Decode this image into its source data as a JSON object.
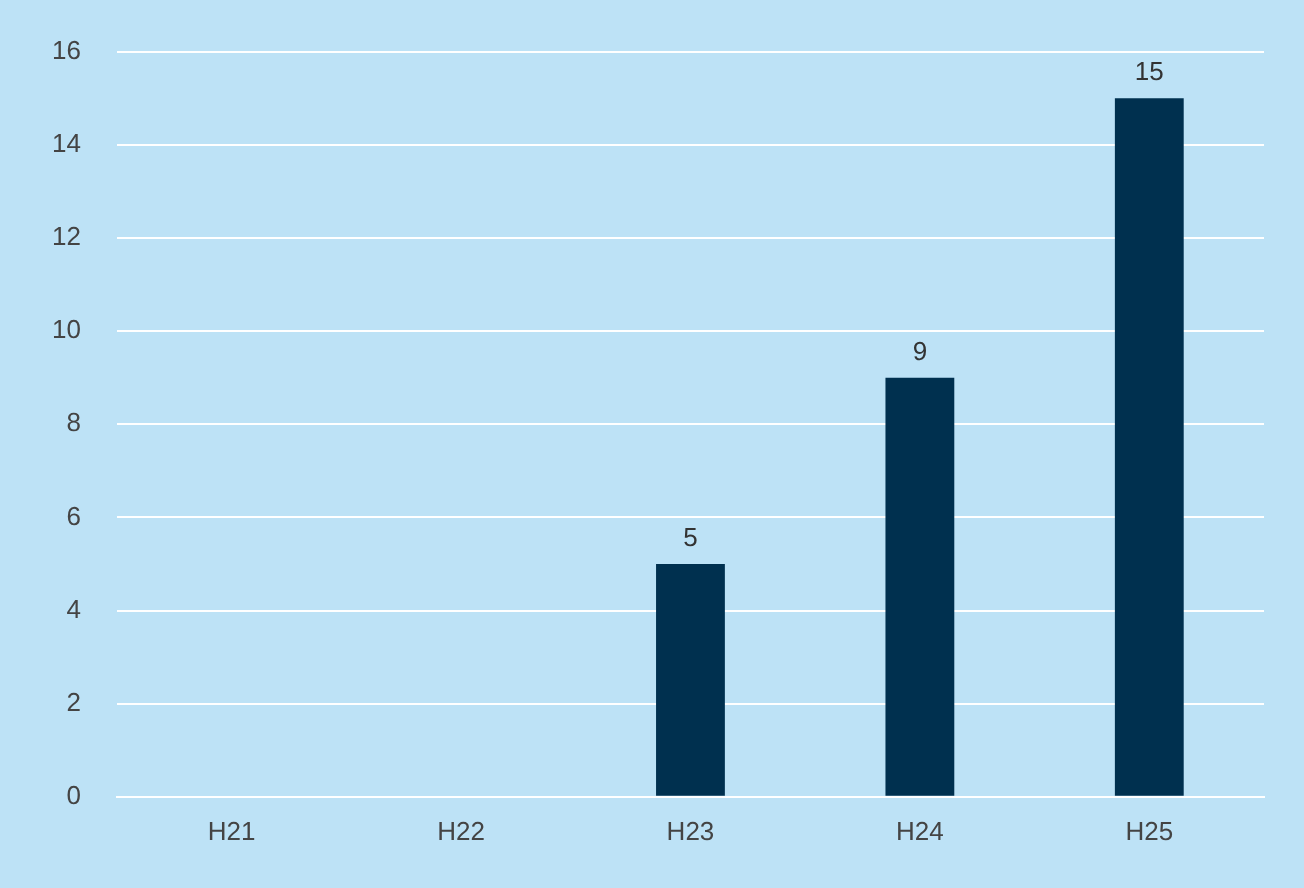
{
  "chart_data": {
    "type": "bar",
    "categories": [
      "H21",
      "H22",
      "H23",
      "H24",
      "H25"
    ],
    "values": [
      0,
      0,
      5,
      9,
      15
    ],
    "value_labels": [
      null,
      null,
      "5",
      "9",
      "15"
    ],
    "color": "#00304f",
    "ylim": [
      0,
      16
    ],
    "yticks": [
      0,
      2,
      4,
      6,
      8,
      10,
      12,
      14,
      16
    ],
    "grid": "y"
  }
}
